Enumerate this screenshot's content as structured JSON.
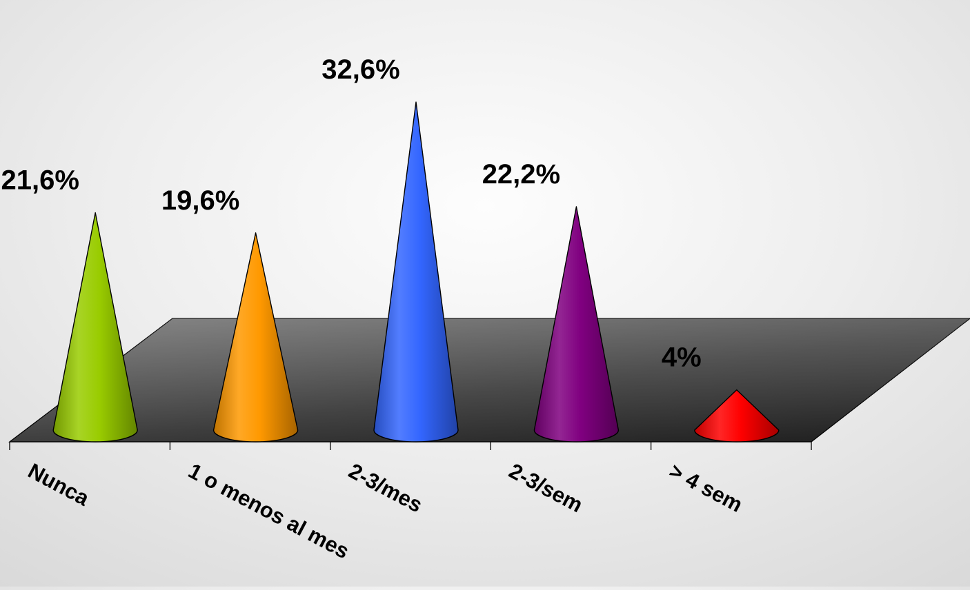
{
  "chart_data": {
    "type": "bar",
    "shape": "cone-3d",
    "categories": [
      "Nunca",
      "1 o menos al mes",
      "2-3/mes",
      "2-3/sem",
      "> 4 sem"
    ],
    "values": [
      21.6,
      19.6,
      32.6,
      22.2,
      4
    ],
    "data_labels": [
      "21,6%",
      "19,6%",
      "32,6%",
      "22,2%",
      "4%"
    ],
    "colors": [
      "#99cc00",
      "#ff9900",
      "#3366ff",
      "#800080",
      "#ff0000"
    ],
    "floor_color": "#7a7a7a",
    "title": "",
    "xlabel": "",
    "ylabel": "",
    "grid": false,
    "legend": "none"
  }
}
